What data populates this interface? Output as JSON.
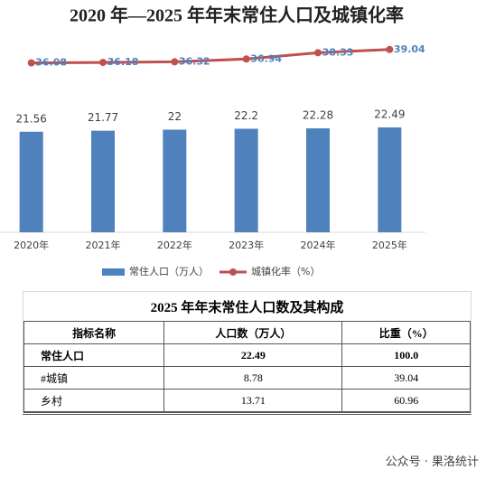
{
  "chart_data": {
    "type": "combo",
    "title": "2020 年—2025 年年末常住人口及城镇化率",
    "categories": [
      "2020年",
      "2021年",
      "2022年",
      "2023年",
      "2024年",
      "2025年"
    ],
    "series": [
      {
        "name": "常住人口（万人）",
        "type": "bar",
        "color": "#4f81bd",
        "values": [
          21.56,
          21.77,
          22,
          22.2,
          22.28,
          22.49
        ]
      },
      {
        "name": "城镇化率（%）",
        "type": "line",
        "axis": "y2",
        "color": "#c0504d",
        "values": [
          36.08,
          36.18,
          36.32,
          36.94,
          38.33,
          39.04
        ]
      }
    ],
    "ylim": [
      0,
      25
    ],
    "y2lim": [
      20,
      45
    ],
    "legend": "bottom"
  },
  "table": {
    "title": "2025 年年末常住人口数及其构成",
    "headers": [
      "指标名称",
      "人口数（万人）",
      "比重（%）"
    ],
    "rows": [
      [
        "常住人口",
        "22.49",
        "100.0"
      ],
      [
        "#城镇",
        "8.78",
        "39.04"
      ],
      [
        "乡村",
        "13.71",
        "60.96"
      ]
    ]
  },
  "watermark": "公众号 · 果洛统计"
}
